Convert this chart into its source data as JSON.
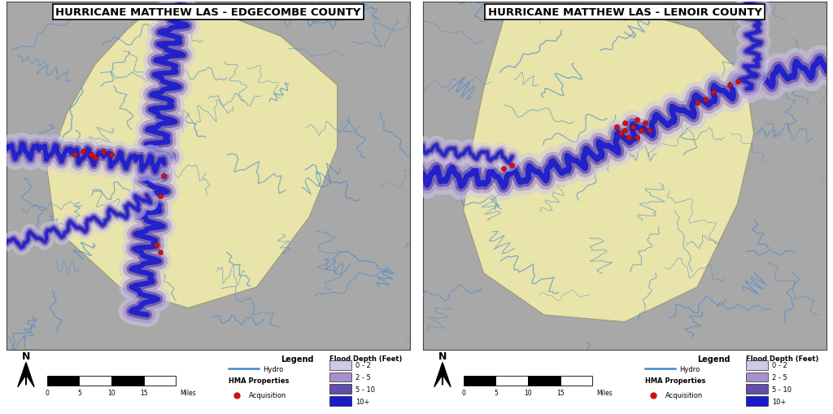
{
  "left_title": "HURRICANE MATTHEW LAS - EDGECOMBE COUNTY",
  "right_title": "HURRICANE MATTHEW LAS - LENOIR COUNTY",
  "map_bg": "#a8a8a8",
  "county_fill": "#e8e4aa",
  "county_edge": "#999977",
  "flood_colors": {
    "0_2": "#d0c8e8",
    "2_5": "#a890cc",
    "5_10": "#6050a8",
    "10plus": "#1a1acc"
  },
  "hydro_color": "#4488cc",
  "hydro_alpha": 0.75,
  "acquisition_color": "#cc1111",
  "legend_items": [
    "0 - 2",
    "2 - 5",
    "5 - 10",
    "10+"
  ],
  "legend_colors": [
    "#d0c8e8",
    "#a890cc",
    "#6050a8",
    "#1a1acc"
  ],
  "scale_label": "Miles",
  "title_fontsize": 9.5,
  "legend_fontsize": 7,
  "white": "#ffffff",
  "black": "#000000",
  "outer_white": "#ffffff"
}
